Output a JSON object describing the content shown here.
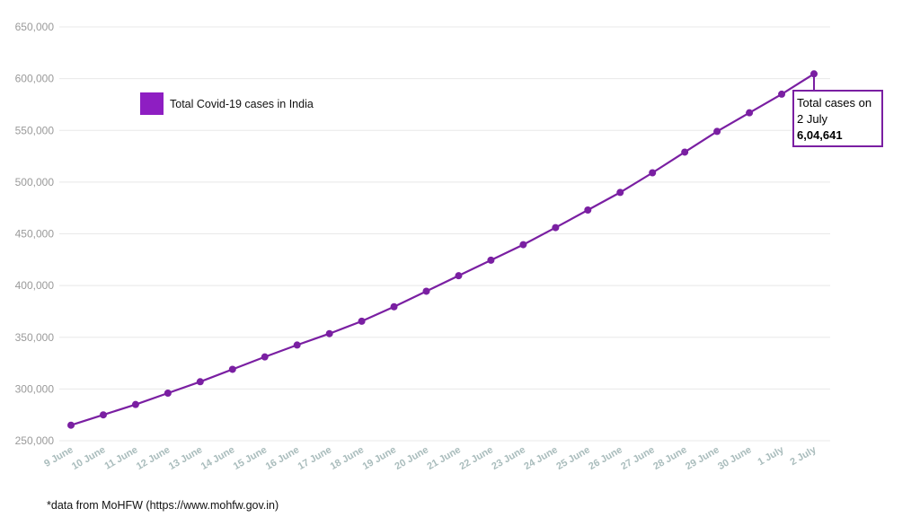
{
  "colors": {
    "series": "#7a1fa2",
    "legend_swatch": "#8e1ec2",
    "grid": "#e8e8e8",
    "ytick": "#9a9a9a",
    "xtick": "#a9bcbc"
  },
  "callout": {
    "line1": "Total cases on",
    "line2": "2 July",
    "line3": "6,04,641"
  },
  "footnote": "*data from MoHFW (https://www.mohfw.gov.in)",
  "chart_data": {
    "type": "line",
    "title": "",
    "xlabel": "",
    "ylabel": "",
    "ylim": [
      250000,
      650000
    ],
    "yticks": [
      "250,000",
      "300,000",
      "350,000",
      "400,000",
      "450,000",
      "500,000",
      "550,000",
      "600,000",
      "650,000"
    ],
    "ytick_values": [
      250000,
      300000,
      350000,
      400000,
      450000,
      500000,
      550000,
      600000,
      650000
    ],
    "grid": true,
    "legend_position": "top-left",
    "categories": [
      "9 June",
      "10 June",
      "11 June",
      "12 June",
      "13 June",
      "14 June",
      "15 June",
      "16 June",
      "17 June",
      "18 June",
      "19 June",
      "20 June",
      "21 June",
      "22 June",
      "23 June",
      "24 June",
      "25 June",
      "26 June",
      "27 June",
      "28 June",
      "29 June",
      "30 June",
      "1 July",
      "2 July"
    ],
    "series": [
      {
        "name": "Total Covid-19 cases in India",
        "values": [
          265000,
          275000,
          285000,
          296000,
          307000,
          319000,
          331000,
          342500,
          353500,
          365500,
          379500,
          394500,
          409500,
          424500,
          439500,
          456000,
          473000,
          490000,
          509000,
          529000,
          549000,
          567000,
          585000,
          604641
        ]
      }
    ]
  }
}
